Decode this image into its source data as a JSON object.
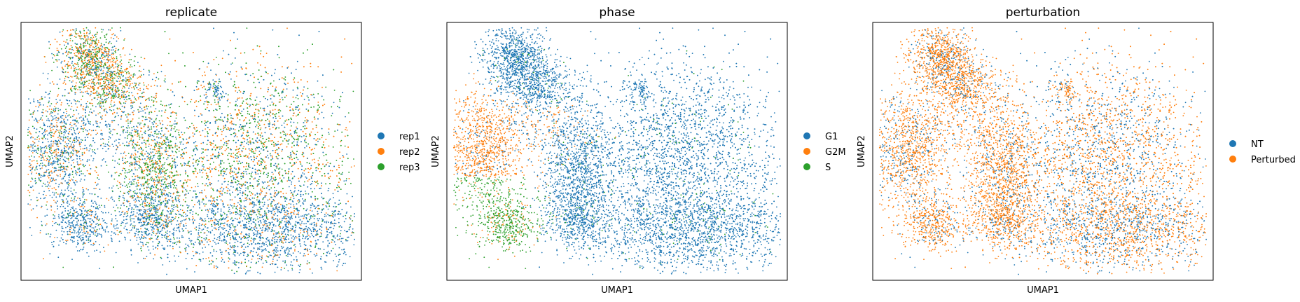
{
  "chart_data": [
    {
      "type": "scatter",
      "title": "replicate",
      "xlabel": "UMAP1",
      "ylabel": "UMAP2",
      "grid": false,
      "legend_position": "right",
      "series": [
        {
          "name": "rep1",
          "color": "#1f77b4"
        },
        {
          "name": "rep2",
          "color": "#ff7f0e"
        },
        {
          "name": "rep3",
          "color": "#2ca02c"
        }
      ]
    },
    {
      "type": "scatter",
      "title": "phase",
      "xlabel": "UMAP1",
      "ylabel": "UMAP2",
      "grid": false,
      "legend_position": "right",
      "series": [
        {
          "name": "G1",
          "color": "#1f77b4"
        },
        {
          "name": "G2M",
          "color": "#ff7f0e"
        },
        {
          "name": "S",
          "color": "#2ca02c"
        }
      ]
    },
    {
      "type": "scatter",
      "title": "perturbation",
      "xlabel": "UMAP1",
      "ylabel": "UMAP2",
      "grid": false,
      "legend_position": "right",
      "series": [
        {
          "name": "NT",
          "color": "#1f77b4"
        },
        {
          "name": "Perturbed",
          "color": "#ff7f0e"
        }
      ]
    }
  ]
}
